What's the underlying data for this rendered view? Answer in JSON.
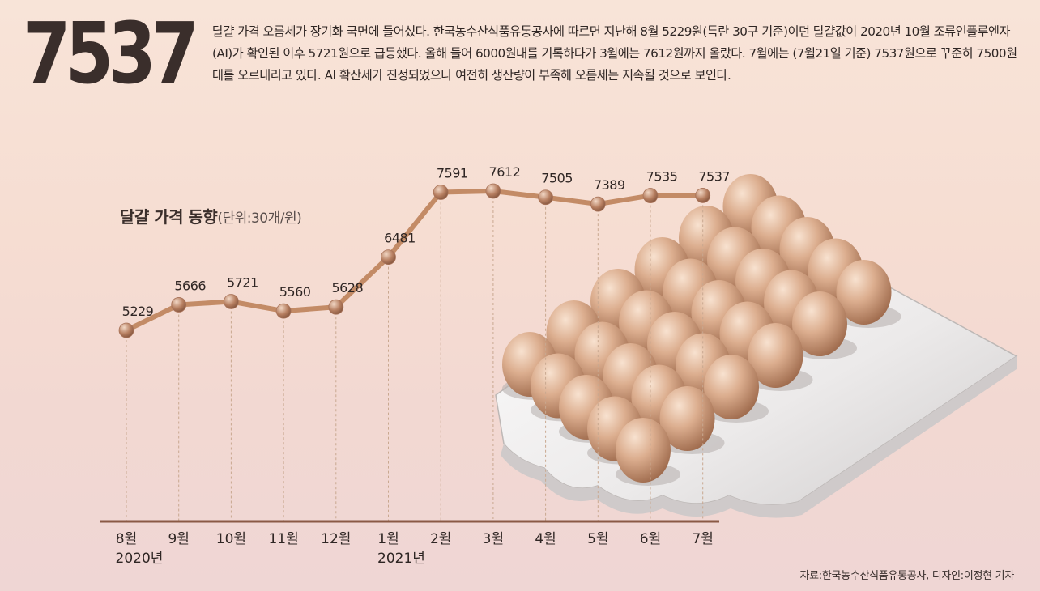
{
  "headline": "7537",
  "description": "달걀 가격 오름세가 장기화 국면에 들어섰다. 한국농수산식품유통공사에 따르면 지난해 8월 5229원(특란 30구 기준)이던 달걀값이 2020년 10월 조류인플루엔자(AI)가 확인된 이후 5721원으로 급등했다. 올해 들어 6000원대를 기록하다가 3월에는 7612원까지 올랐다. 7월에는 (7월21일 기준) 7537원으로 꾸준히 7500원대를 오르내리고 있다. AI 확산세가 진정되었으나 여전히 생산량이 부족해 오름세는 지속될 것으로 보인다.",
  "source": "자료:한국농수산식품유통공사, 디자인:이정현 기자",
  "colors": {
    "line": "#c38b66",
    "marker": "#a9745a",
    "dashed": "#c9a890",
    "axis": "#8a5a45",
    "egg": "#d9a98a",
    "tray": "#f2efee"
  },
  "chart_data": {
    "type": "line",
    "title": "달걀 가격 동향",
    "unit": "(단위:30개/원)",
    "categories": [
      "8월",
      "9월",
      "10월",
      "11월",
      "12월",
      "1월",
      "2월",
      "3월",
      "4월",
      "5월",
      "6월",
      "7월"
    ],
    "year_labels": [
      {
        "index": 0,
        "label": "2020년"
      },
      {
        "index": 5,
        "label": "2021년"
      }
    ],
    "values": [
      5229,
      5666,
      5721,
      5560,
      5628,
      6481,
      7591,
      7612,
      7505,
      7389,
      7535,
      7537
    ],
    "data_labels": [
      "5229",
      "5666",
      "5721",
      "5560",
      "5628",
      "6481",
      "7591",
      "7612",
      "7505",
      "7389",
      "7535",
      "7537"
    ],
    "grid": false,
    "legend": "none"
  }
}
